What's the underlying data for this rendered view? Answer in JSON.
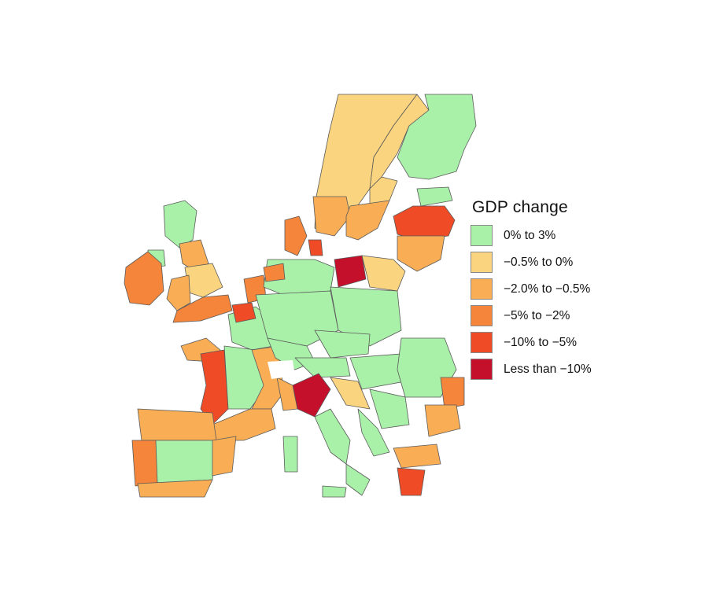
{
  "legend": {
    "title": "GDP change",
    "items": [
      {
        "label": "0% to 3%",
        "color": "#a9f0a9",
        "key": "g"
      },
      {
        "label": "−0.5% to 0%",
        "color": "#fbd47f",
        "key": "y"
      },
      {
        "label": "−2.0% to −0.5%",
        "color": "#f9ae56",
        "key": "o"
      },
      {
        "label": "−5% to −2%",
        "color": "#f5853a",
        "key": "d"
      },
      {
        "label": "−10% to −5%",
        "color": "#ee4b26",
        "key": "r"
      },
      {
        "label": "Less than −10%",
        "color": "#c4102a",
        "key": "x"
      }
    ]
  }
}
